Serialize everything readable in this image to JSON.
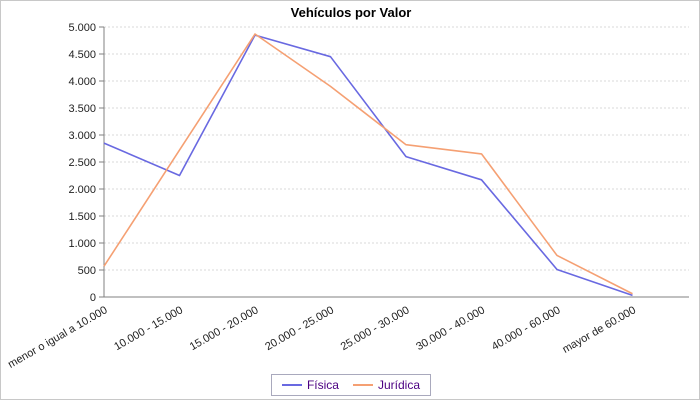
{
  "chart_data": {
    "type": "line",
    "title": "Vehículos por Valor",
    "categories": [
      "menor o igual a 10.000",
      "10.000 - 15.000",
      "15.000 - 20.000",
      "20.000 - 25.000",
      "25.000 - 30.000",
      "30.000 - 40.000",
      "40.000 - 60.000",
      "mayor de 60.000"
    ],
    "series": [
      {
        "name": "Física",
        "color": "#6969e1",
        "values": [
          2850,
          2250,
          4850,
          4450,
          2600,
          2170,
          510,
          30
        ]
      },
      {
        "name": "Jurídica",
        "color": "#f5a073",
        "values": [
          570,
          2720,
          4870,
          3900,
          2820,
          2650,
          770,
          60
        ]
      }
    ],
    "ylim": [
      0,
      5000
    ],
    "ytick_step": 500,
    "ytick_labels": [
      "0",
      "500",
      "1.000",
      "1.500",
      "2.000",
      "2.500",
      "3.000",
      "3.500",
      "4.000",
      "4.500",
      "5.000"
    ],
    "grid": "horizontal-dashed",
    "legend_position": "bottom",
    "xlabel": "",
    "ylabel": ""
  },
  "colors": {
    "grid": "#d9d9d9",
    "axis": "#808080",
    "tick_label": "#222222",
    "legend_text": "#4b0082",
    "legend_border": "#a9a9bd",
    "title": "#000000"
  }
}
